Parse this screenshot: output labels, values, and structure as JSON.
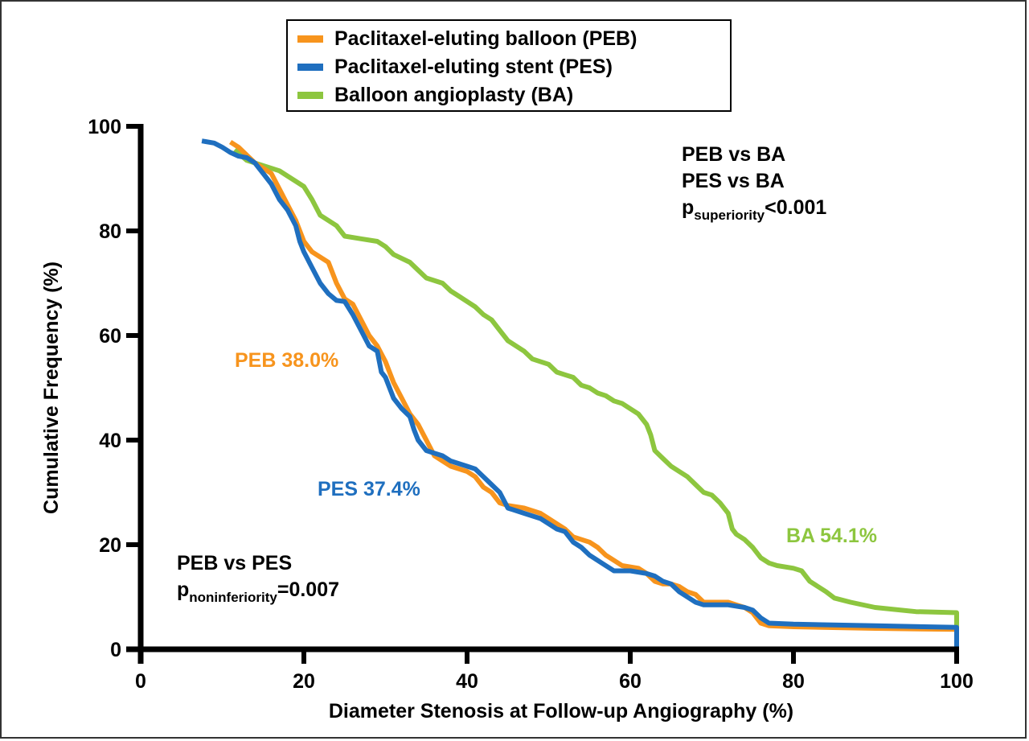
{
  "chart_data": {
    "type": "line",
    "title": "",
    "xlabel": "Diameter Stenosis at Follow-up Angiography (%)",
    "ylabel": "Cumulative Frequency (%)",
    "xlim": [
      0,
      100
    ],
    "ylim": [
      0,
      100
    ],
    "xticks": [
      0,
      20,
      40,
      60,
      80,
      100
    ],
    "yticks": [
      0,
      20,
      40,
      60,
      80,
      100
    ],
    "xtick_labels": [
      "0",
      "20",
      "40",
      "60",
      "80",
      "100"
    ],
    "ytick_labels": [
      "0",
      "20",
      "40",
      "60",
      "80",
      "100"
    ],
    "grid": false,
    "legend_position": "top-center",
    "legend": [
      {
        "name": "Paclitaxel-eluting balloon (PEB)",
        "color": "#F7941D"
      },
      {
        "name": "Paclitaxel-eluting stent (PES)",
        "color": "#1F6FBF"
      },
      {
        "name": "Balloon angioplasty (BA)",
        "color": "#8DC63F"
      }
    ],
    "series": [
      {
        "name": "Paclitaxel-eluting balloon (PEB)",
        "short": "PEB",
        "color": "#F7941D",
        "points": [
          [
            11,
            97
          ],
          [
            12,
            96
          ],
          [
            14,
            93
          ],
          [
            16,
            91
          ],
          [
            17,
            88
          ],
          [
            18,
            85
          ],
          [
            19,
            82
          ],
          [
            20,
            78
          ],
          [
            21,
            76
          ],
          [
            22,
            75
          ],
          [
            23,
            74
          ],
          [
            24,
            70
          ],
          [
            25,
            67
          ],
          [
            26,
            66
          ],
          [
            27,
            63
          ],
          [
            28,
            60
          ],
          [
            29,
            58
          ],
          [
            30,
            55
          ],
          [
            31,
            51
          ],
          [
            32,
            48
          ],
          [
            33,
            45
          ],
          [
            34,
            43
          ],
          [
            35,
            40
          ],
          [
            36,
            37
          ],
          [
            37,
            36
          ],
          [
            38,
            35
          ],
          [
            40,
            34
          ],
          [
            41,
            33
          ],
          [
            42,
            31
          ],
          [
            43,
            30
          ],
          [
            44,
            28
          ],
          [
            45,
            27.5
          ],
          [
            47,
            27
          ],
          [
            49,
            26
          ],
          [
            50,
            25
          ],
          [
            51,
            24
          ],
          [
            52,
            23
          ],
          [
            53,
            21.5
          ],
          [
            55,
            20.5
          ],
          [
            56,
            19.5
          ],
          [
            57,
            18
          ],
          [
            58,
            17
          ],
          [
            59,
            16
          ],
          [
            61,
            15.5
          ],
          [
            62,
            14.5
          ],
          [
            63,
            13
          ],
          [
            64,
            12.5
          ],
          [
            65,
            12.5
          ],
          [
            66,
            12
          ],
          [
            67,
            11
          ],
          [
            68,
            10.5
          ],
          [
            69,
            9
          ],
          [
            70,
            9
          ],
          [
            72,
            9
          ],
          [
            73,
            8.5
          ],
          [
            74,
            8
          ],
          [
            75,
            7
          ],
          [
            76,
            5
          ],
          [
            77,
            4.5
          ],
          [
            80,
            4.3
          ],
          [
            90,
            4
          ],
          [
            100,
            3.8
          ],
          [
            100,
            2
          ]
        ],
        "annotation": "PEB 38.0%"
      },
      {
        "name": "Paclitaxel-eluting stent (PES)",
        "short": "PES",
        "color": "#1F6FBF",
        "points": [
          [
            7.5,
            97.2
          ],
          [
            9,
            96.8
          ],
          [
            10,
            96
          ],
          [
            11,
            95
          ],
          [
            12,
            94.3
          ],
          [
            13,
            94
          ],
          [
            14,
            93
          ],
          [
            15,
            91
          ],
          [
            16,
            89
          ],
          [
            17,
            86
          ],
          [
            18,
            84
          ],
          [
            19,
            81
          ],
          [
            19.5,
            78
          ],
          [
            20,
            76
          ],
          [
            21,
            73
          ],
          [
            22,
            70
          ],
          [
            23,
            68
          ],
          [
            24,
            66.7
          ],
          [
            25,
            66.5
          ],
          [
            26,
            64
          ],
          [
            27,
            61
          ],
          [
            28,
            58
          ],
          [
            29,
            57
          ],
          [
            29.5,
            53
          ],
          [
            30,
            52
          ],
          [
            31,
            48
          ],
          [
            32,
            46
          ],
          [
            33,
            44.5
          ],
          [
            33.5,
            42
          ],
          [
            34,
            40
          ],
          [
            35,
            38
          ],
          [
            36,
            37.5
          ],
          [
            37,
            37
          ],
          [
            38,
            36
          ],
          [
            40,
            35
          ],
          [
            41,
            34.5
          ],
          [
            42,
            33
          ],
          [
            43,
            31.5
          ],
          [
            44,
            30
          ],
          [
            45,
            27
          ],
          [
            47,
            26
          ],
          [
            49,
            25
          ],
          [
            50,
            24
          ],
          [
            51,
            23
          ],
          [
            52,
            22.5
          ],
          [
            53,
            20.5
          ],
          [
            54,
            19.5
          ],
          [
            55,
            18
          ],
          [
            56,
            17
          ],
          [
            57,
            16
          ],
          [
            58,
            15
          ],
          [
            60,
            15
          ],
          [
            62,
            14.5
          ],
          [
            63,
            14
          ],
          [
            64,
            13
          ],
          [
            65,
            12.5
          ],
          [
            66,
            11
          ],
          [
            67,
            10
          ],
          [
            68,
            9
          ],
          [
            69,
            8.5
          ],
          [
            70,
            8.5
          ],
          [
            72,
            8.5
          ],
          [
            74,
            8
          ],
          [
            75,
            7.5
          ],
          [
            76,
            6
          ],
          [
            77,
            5
          ],
          [
            80,
            4.8
          ],
          [
            90,
            4.5
          ],
          [
            100,
            4.2
          ],
          [
            100,
            0
          ]
        ],
        "annotation": "PES 37.4%"
      },
      {
        "name": "Balloon angioplasty (BA)",
        "short": "BA",
        "color": "#8DC63F",
        "points": [
          [
            11.5,
            95.5
          ],
          [
            13,
            93.5
          ],
          [
            15,
            92.5
          ],
          [
            17,
            91.5
          ],
          [
            18,
            90.5
          ],
          [
            19,
            89.5
          ],
          [
            20,
            88.5
          ],
          [
            21,
            86
          ],
          [
            22,
            83
          ],
          [
            24,
            81
          ],
          [
            25,
            79
          ],
          [
            27,
            78.5
          ],
          [
            29,
            78
          ],
          [
            30,
            77
          ],
          [
            31,
            75.5
          ],
          [
            33,
            74
          ],
          [
            34,
            72.5
          ],
          [
            35,
            71
          ],
          [
            37,
            70
          ],
          [
            38,
            68.5
          ],
          [
            39,
            67.5
          ],
          [
            40,
            66.5
          ],
          [
            41,
            65.5
          ],
          [
            42,
            64
          ],
          [
            43,
            63
          ],
          [
            44,
            61
          ],
          [
            45,
            59
          ],
          [
            46,
            58
          ],
          [
            47,
            57
          ],
          [
            48,
            55.5
          ],
          [
            50,
            54.5
          ],
          [
            51,
            53
          ],
          [
            52,
            52.5
          ],
          [
            53,
            52
          ],
          [
            54,
            50.5
          ],
          [
            55,
            50
          ],
          [
            56,
            49
          ],
          [
            57,
            48.5
          ],
          [
            58,
            47.5
          ],
          [
            59,
            47
          ],
          [
            60,
            46
          ],
          [
            61,
            45
          ],
          [
            62,
            43
          ],
          [
            62.5,
            41
          ],
          [
            63,
            38
          ],
          [
            64,
            36.5
          ],
          [
            65,
            35
          ],
          [
            66,
            34
          ],
          [
            67,
            33
          ],
          [
            68,
            31.5
          ],
          [
            69,
            30
          ],
          [
            70,
            29.5
          ],
          [
            71,
            28
          ],
          [
            72,
            26
          ],
          [
            72.5,
            23
          ],
          [
            73,
            22
          ],
          [
            74,
            21
          ],
          [
            75,
            19.5
          ],
          [
            76,
            17.5
          ],
          [
            77,
            16.5
          ],
          [
            78,
            16
          ],
          [
            80,
            15.5
          ],
          [
            81,
            15
          ],
          [
            82,
            13
          ],
          [
            83,
            12
          ],
          [
            84,
            11
          ],
          [
            85,
            9.8
          ],
          [
            87,
            9
          ],
          [
            90,
            8
          ],
          [
            95,
            7.2
          ],
          [
            100,
            7
          ],
          [
            100,
            4
          ]
        ],
        "annotation": "BA 54.1%"
      }
    ],
    "annotations": {
      "superiority": {
        "line1": "PEB vs BA",
        "line2": "PES vs BA",
        "p_symbol": "p",
        "p_sub": "superiority",
        "p_value": "<0.001"
      },
      "noninferiority": {
        "line1": "PEB vs PES",
        "p_symbol": "p",
        "p_sub": "noninferiority",
        "p_value": "=0.007"
      }
    }
  }
}
